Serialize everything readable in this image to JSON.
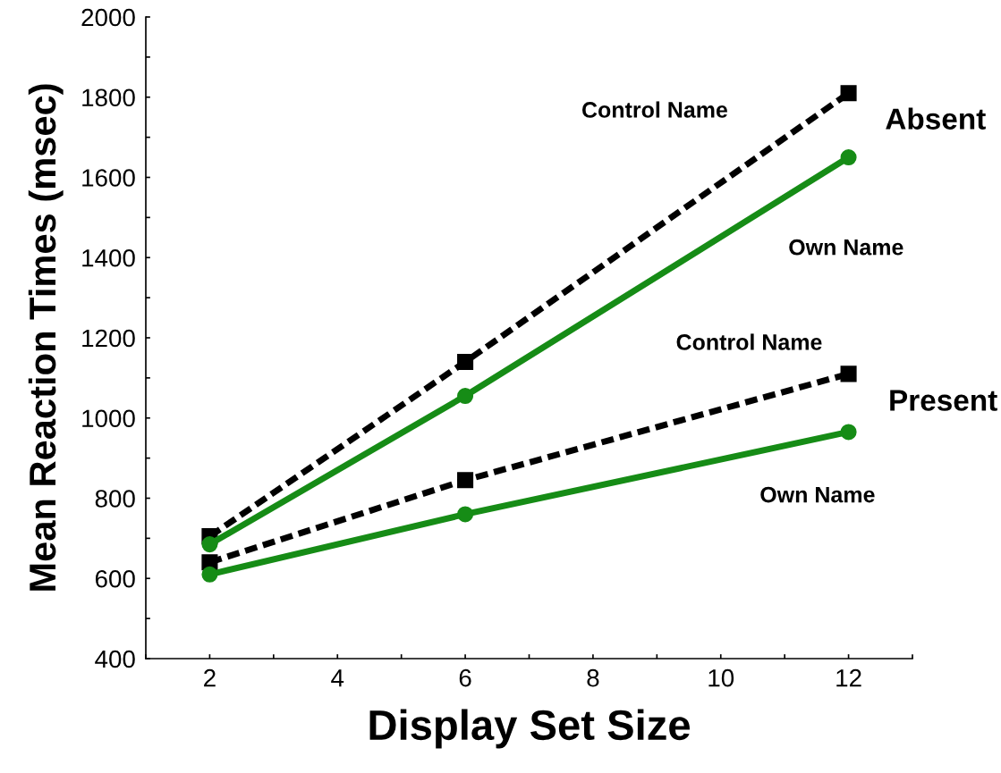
{
  "chart_data": {
    "type": "line",
    "xlabel": "Display Set Size",
    "ylabel": "Mean Reaction Times (msec)",
    "x": [
      2,
      6,
      12
    ],
    "series": [
      {
        "name": "Control Name",
        "color": "#000000",
        "values": [
          705,
          1140,
          1810
        ],
        "marker": "square",
        "line_style": "dashed"
      },
      {
        "name": "Own Name",
        "color": "#168c16",
        "values": [
          685,
          1055,
          1650
        ],
        "marker": "circle",
        "line_style": "solid"
      },
      {
        "name": "Control Name",
        "color": "#000000",
        "values": [
          640,
          845,
          1110
        ],
        "marker": "square",
        "line_style": "dashed"
      },
      {
        "name": "Own Name",
        "color": "#168c16",
        "values": [
          610,
          760,
          965
        ],
        "marker": "circle",
        "line_style": "solid"
      }
    ],
    "xlim": [
      1,
      13
    ],
    "ylim": [
      400,
      2000
    ],
    "xticks": [
      {
        "value": 1,
        "label": null
      },
      2,
      {
        "value": 3,
        "label": null
      },
      4,
      {
        "value": 5,
        "label": null
      },
      6,
      {
        "value": 7,
        "label": null
      },
      8,
      {
        "value": 9,
        "label": null
      },
      10,
      {
        "value": 11,
        "label": null
      },
      12,
      {
        "value": 13,
        "label": null
      }
    ],
    "yticks": [
      400,
      {
        "value": 500,
        "label": null
      },
      600,
      {
        "value": 700,
        "label": null
      },
      800,
      {
        "value": 900,
        "label": null
      },
      1000,
      {
        "value": 1100,
        "label": null
      },
      1200,
      {
        "value": 1300,
        "label": null
      },
      1400,
      {
        "value": 1500,
        "label": null
      },
      1600,
      {
        "value": 1700,
        "label": null
      },
      1800,
      {
        "value": 1900,
        "label": null
      },
      2000
    ],
    "grid": false,
    "legend": false,
    "annotations": [
      "Absent",
      "Present"
    ]
  }
}
